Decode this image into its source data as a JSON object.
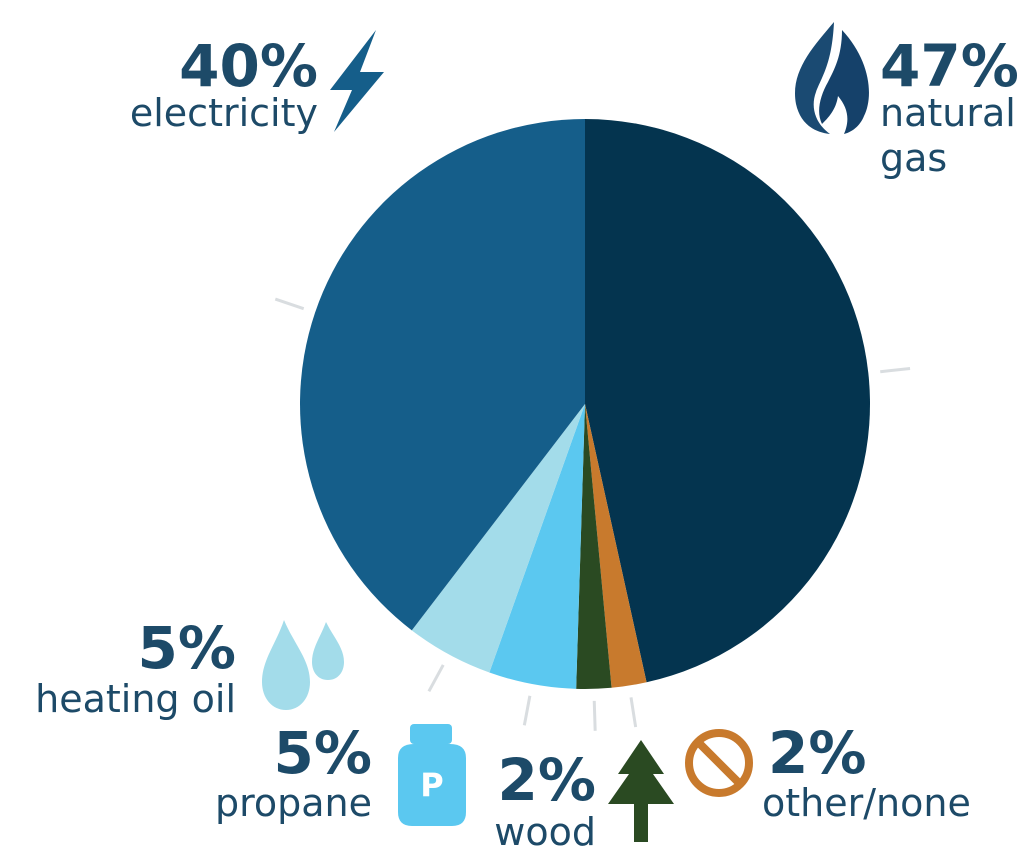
{
  "chart_data": {
    "type": "pie",
    "title": "",
    "slices": [
      {
        "label": "natural gas",
        "value": 47,
        "pct_text": "47%",
        "label_lines": [
          "natural",
          "gas"
        ],
        "color": "#04344f",
        "icon": "flame-icon"
      },
      {
        "label": "other/none",
        "value": 2,
        "pct_text": "2%",
        "label_lines": [
          "other/none"
        ],
        "color": "#c87a2d",
        "icon": "prohibited-icon"
      },
      {
        "label": "wood",
        "value": 2,
        "pct_text": "2%",
        "label_lines": [
          "wood"
        ],
        "color": "#2a4a22",
        "icon": "tree-icon"
      },
      {
        "label": "propane",
        "value": 5,
        "pct_text": "5%",
        "label_lines": [
          "propane"
        ],
        "color": "#5bc8f0",
        "icon": "propane-tank-icon",
        "icon_letter": "P"
      },
      {
        "label": "heating oil",
        "value": 5,
        "pct_text": "5%",
        "label_lines": [
          "heating oil"
        ],
        "color": "#a3dcea",
        "icon": "oil-drops-icon"
      },
      {
        "label": "electricity",
        "value": 40,
        "pct_text": "40%",
        "label_lines": [
          "electricity"
        ],
        "color": "#155e8a",
        "icon": "lightning-bolt-icon"
      }
    ],
    "start_angle_deg": 0,
    "direction": "clockwise",
    "legend": "none"
  }
}
